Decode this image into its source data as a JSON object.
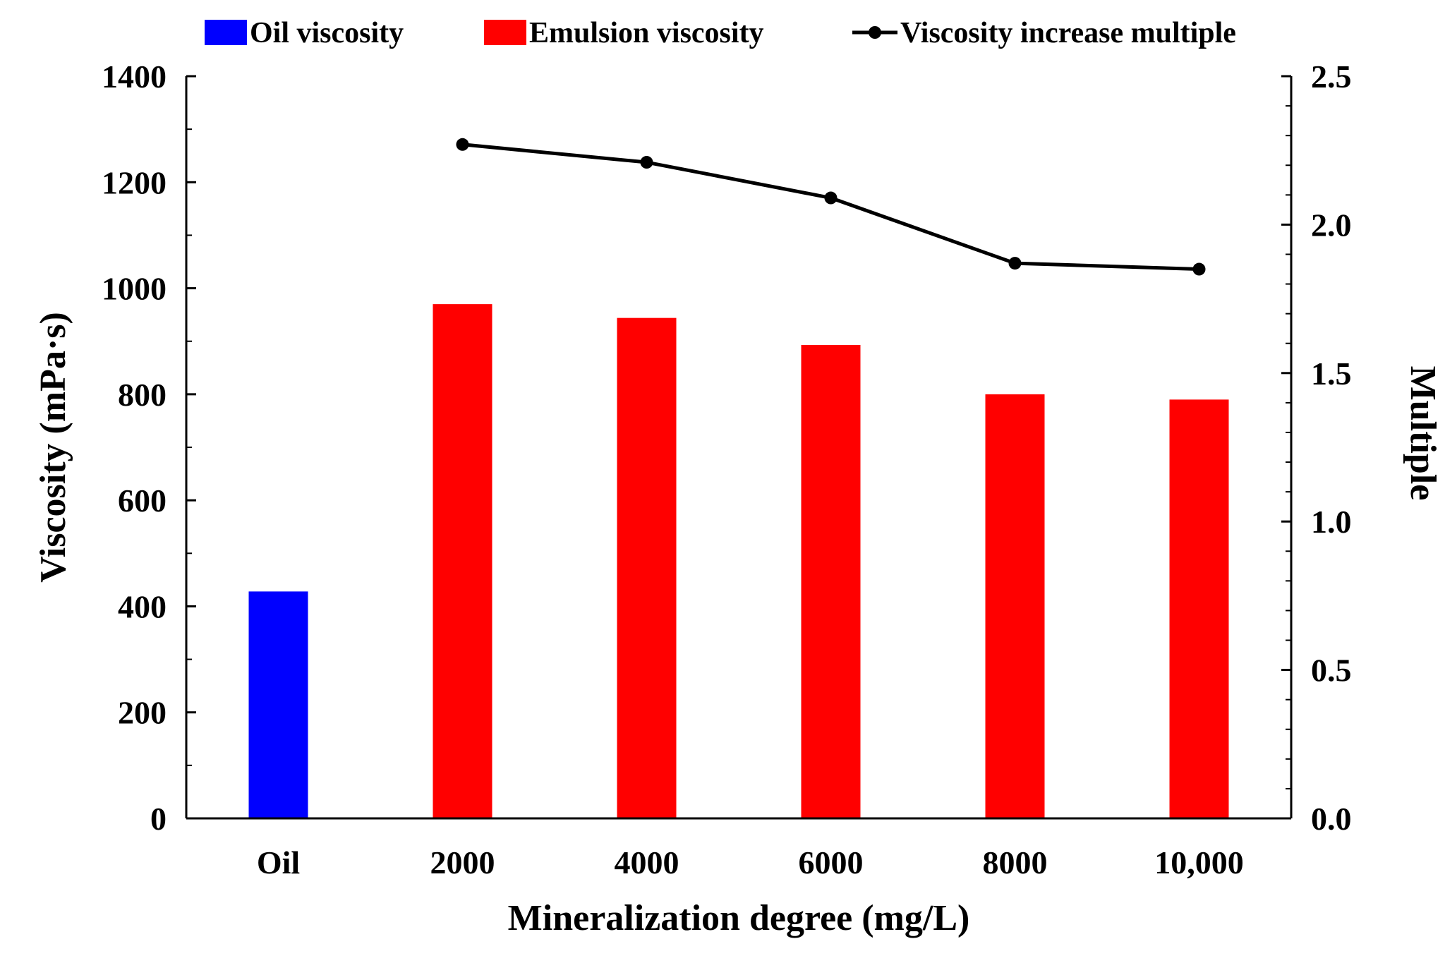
{
  "chart_data": {
    "type": "bar",
    "title": "",
    "xlabel": "Mineralization degree (mg/L)",
    "ylabel": "Viscosity (mPa·s)",
    "y2label": "Multiple",
    "categories": [
      "Oil",
      "2000",
      "4000",
      "6000",
      "8000",
      "10,000"
    ],
    "ylim": [
      0,
      1400
    ],
    "yticks": [
      0,
      200,
      400,
      600,
      800,
      1000,
      1200,
      1400
    ],
    "y2lim": [
      0,
      2.5
    ],
    "y2ticks": [
      "0.0",
      "0.5",
      "1.0",
      "1.5",
      "2.0",
      "2.5"
    ],
    "grid": false,
    "legend_position": "top",
    "series": [
      {
        "name": "Oil viscosity",
        "kind": "bar",
        "color": "#0000ff",
        "values": [
          428,
          null,
          null,
          null,
          null,
          null
        ]
      },
      {
        "name": "Emulsion viscosity",
        "kind": "bar",
        "color": "#ff0000",
        "values": [
          null,
          970,
          944,
          893,
          800,
          790
        ]
      },
      {
        "name": "Viscosity increase multiple",
        "kind": "line",
        "axis": "right",
        "color": "#000000",
        "values": [
          null,
          2.27,
          2.21,
          2.09,
          1.87,
          1.85
        ]
      }
    ]
  }
}
